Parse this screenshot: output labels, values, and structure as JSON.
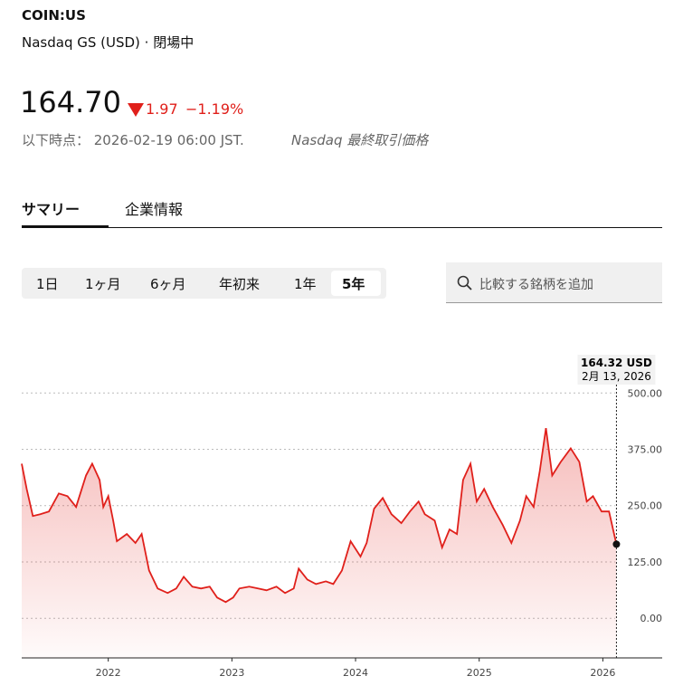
{
  "header": {
    "symbol": "COIN:US",
    "exchange": "Nasdaq GS (USD) · 閉場中",
    "price": "164.70",
    "change": "1.97",
    "change_pct": "−1.19%",
    "timestamp": "以下時点： 2026-02-19 06:00 JST.",
    "source": "Nasdaq 最終取引価格"
  },
  "tabs": [
    "サマリー",
    "企業情報"
  ],
  "ranges": [
    "1日",
    "1ヶ月",
    "6ヶ月",
    "年初来",
    "1年",
    "5年"
  ],
  "search_placeholder": "比較する銘柄を追加",
  "chart_data": {
    "type": "line",
    "color": "#e0201b",
    "grid": true,
    "tooltip": {
      "value_label": "164.32 USD",
      "date": "2月 13, 2026"
    },
    "xlim": [
      2021.3,
      2026.48
    ],
    "xticks": [
      2022,
      2023,
      2024,
      2025,
      2026
    ],
    "ylim": [
      -88,
      609
    ],
    "yticks": [
      {
        "value": 0,
        "label": "0.00"
      },
      {
        "value": 125,
        "label": "125.00"
      },
      {
        "value": 250,
        "label": "250.00"
      },
      {
        "value": 375,
        "label": "375.00"
      },
      {
        "value": 500,
        "label": "500.00"
      }
    ],
    "x": [
      2021.3,
      2021.34,
      2021.39,
      2021.45,
      2021.52,
      2021.6,
      2021.67,
      2021.74,
      2021.82,
      2021.87,
      2021.93,
      2021.96,
      2022.0,
      2022.04,
      2022.07,
      2022.15,
      2022.22,
      2022.27,
      2022.33,
      2022.4,
      2022.48,
      2022.55,
      2022.61,
      2022.68,
      2022.75,
      2022.82,
      2022.88,
      2022.95,
      2023.01,
      2023.06,
      2023.14,
      2023.21,
      2023.28,
      2023.36,
      2023.43,
      2023.5,
      2023.54,
      2023.61,
      2023.68,
      2023.76,
      2023.82,
      2023.89,
      2023.96,
      2024.04,
      2024.09,
      2024.15,
      2024.22,
      2024.29,
      2024.37,
      2024.44,
      2024.51,
      2024.56,
      2024.64,
      2024.7,
      2024.76,
      2024.82,
      2024.87,
      2024.93,
      2024.98,
      2025.04,
      2025.11,
      2025.19,
      2025.26,
      2025.33,
      2025.38,
      2025.44,
      2025.49,
      2025.54,
      2025.59,
      2025.66,
      2025.74,
      2025.81,
      2025.87,
      2025.92,
      2025.99,
      2026.05,
      2026.11
    ],
    "values": [
      343,
      287,
      227,
      231,
      237,
      277,
      271,
      247,
      317,
      343,
      307,
      247,
      271,
      217,
      171,
      187,
      167,
      187,
      106,
      66,
      56,
      66,
      92,
      70,
      66,
      70,
      46,
      36,
      46,
      66,
      70,
      66,
      62,
      70,
      56,
      66,
      110,
      86,
      76,
      82,
      76,
      106,
      171,
      137,
      167,
      243,
      267,
      231,
      211,
      237,
      259,
      231,
      217,
      157,
      197,
      187,
      307,
      343,
      259,
      287,
      247,
      207,
      167,
      217,
      271,
      247,
      327,
      422,
      317,
      347,
      377,
      347,
      259,
      271,
      237,
      237,
      164.32
    ]
  }
}
